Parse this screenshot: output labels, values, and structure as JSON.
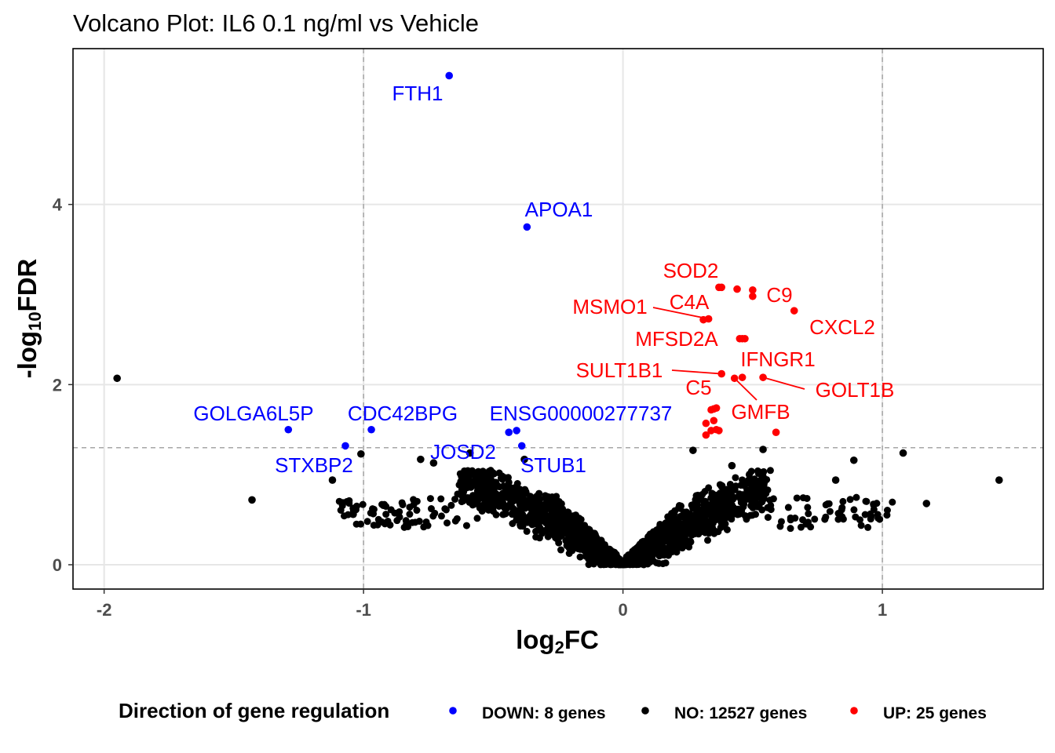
{
  "chart_data": {
    "type": "scatter",
    "title": "Volcano Plot: IL6 0.1 ng/ml vs Vehicle",
    "xlabel_base": "log",
    "xlabel_sub": "2",
    "xlabel_tail": "FC",
    "ylabel_head": "-log",
    "ylabel_sub": "10",
    "ylabel_tail": "FDR",
    "xlim": [
      -2.12,
      1.62
    ],
    "ylim": [
      -0.27,
      5.73
    ],
    "x_ticks": [
      -2,
      -1,
      0,
      1
    ],
    "x_tick_labels": [
      "-2",
      "-1",
      "0",
      "1"
    ],
    "y_ticks": [
      0,
      2,
      4
    ],
    "y_tick_labels": [
      "0",
      "2",
      "4"
    ],
    "grid": true,
    "thresholds": {
      "x": [
        -1,
        1
      ],
      "y": 1.3
    },
    "colors": {
      "DOWN": "#0000ff",
      "NO": "#000000",
      "UP": "#ff0000"
    },
    "series": [
      {
        "key": "DOWN",
        "name": "DOWN: 8 genes",
        "color": "#0000ff",
        "points": [
          {
            "x": -0.67,
            "y": 5.43,
            "label": "FTH1"
          },
          {
            "x": -0.37,
            "y": 3.75,
            "label": "APOA1"
          },
          {
            "x": -1.29,
            "y": 1.5,
            "label": "GOLGA6L5P"
          },
          {
            "x": -0.97,
            "y": 1.5,
            "label": "CDC42BPG"
          },
          {
            "x": -0.41,
            "y": 1.49,
            "label": "ENSG00000277737"
          },
          {
            "x": -1.07,
            "y": 1.32,
            "label": "STXBP2"
          },
          {
            "x": -0.44,
            "y": 1.47,
            "label": "JOSD2"
          },
          {
            "x": -0.39,
            "y": 1.32,
            "label": "STUB1"
          }
        ]
      },
      {
        "key": "NO",
        "name": "NO: 12527 genes",
        "color": "#000000",
        "points": [
          {
            "x": -1.95,
            "y": 2.07
          },
          {
            "x": -1.43,
            "y": 0.72
          },
          {
            "x": -1.12,
            "y": 0.94
          },
          {
            "x": -1.04,
            "y": 0.56
          },
          {
            "x": -1.01,
            "y": 1.23
          },
          {
            "x": -0.78,
            "y": 1.17
          },
          {
            "x": -0.73,
            "y": 1.13
          },
          {
            "x": -0.59,
            "y": 1.24
          },
          {
            "x": -0.38,
            "y": 1.17
          },
          {
            "x": 0.27,
            "y": 1.27
          },
          {
            "x": 0.42,
            "y": 1.1
          },
          {
            "x": 0.54,
            "y": 1.28
          },
          {
            "x": 0.82,
            "y": 0.94
          },
          {
            "x": 0.89,
            "y": 1.16
          },
          {
            "x": 1.08,
            "y": 1.24
          },
          {
            "x": 1.17,
            "y": 0.68
          },
          {
            "x": 1.45,
            "y": 0.94
          }
        ]
      },
      {
        "key": "UP",
        "name": "UP: 25 genes",
        "color": "#ff0000",
        "points": [
          {
            "x": 0.37,
            "y": 3.08,
            "label": "SOD2"
          },
          {
            "x": 0.5,
            "y": 3.05,
            "label": "C9"
          },
          {
            "x": 0.66,
            "y": 2.82,
            "label": "CXCL2"
          },
          {
            "x": 0.33,
            "y": 2.73,
            "label": "MSMO1"
          },
          {
            "x": 0.31,
            "y": 2.72,
            "label": "C4A"
          },
          {
            "x": 0.46,
            "y": 2.51,
            "label": "MFSD2A"
          },
          {
            "x": 0.38,
            "y": 2.12,
            "label": "SULT1B1"
          },
          {
            "x": 0.46,
            "y": 2.08,
            "label": "IFNGR1"
          },
          {
            "x": 0.54,
            "y": 2.08,
            "label": "GOLT1B"
          },
          {
            "x": 0.35,
            "y": 1.73,
            "label": "C5"
          },
          {
            "x": 0.43,
            "y": 2.07,
            "label": "GMFB"
          },
          {
            "x": 0.38,
            "y": 3.08
          },
          {
            "x": 0.44,
            "y": 3.06
          },
          {
            "x": 0.5,
            "y": 2.98
          },
          {
            "x": 0.45,
            "y": 2.51
          },
          {
            "x": 0.47,
            "y": 2.51
          },
          {
            "x": 0.36,
            "y": 1.74
          },
          {
            "x": 0.34,
            "y": 1.72
          },
          {
            "x": 0.35,
            "y": 1.6
          },
          {
            "x": 0.32,
            "y": 1.57
          },
          {
            "x": 0.34,
            "y": 1.49
          },
          {
            "x": 0.36,
            "y": 1.5
          },
          {
            "x": 0.37,
            "y": 1.49
          },
          {
            "x": 0.32,
            "y": 1.44
          },
          {
            "x": 0.59,
            "y": 1.47
          }
        ]
      }
    ],
    "legend": {
      "title": "Direction of gene regulation",
      "placement": "bottom",
      "entries": [
        {
          "key": "DOWN",
          "label": "DOWN: 8 genes",
          "color": "#0000ff"
        },
        {
          "key": "NO",
          "label": "NO: 12527 genes",
          "color": "#000000"
        },
        {
          "key": "UP",
          "label": "UP: 25 genes",
          "color": "#ff0000"
        }
      ]
    }
  }
}
